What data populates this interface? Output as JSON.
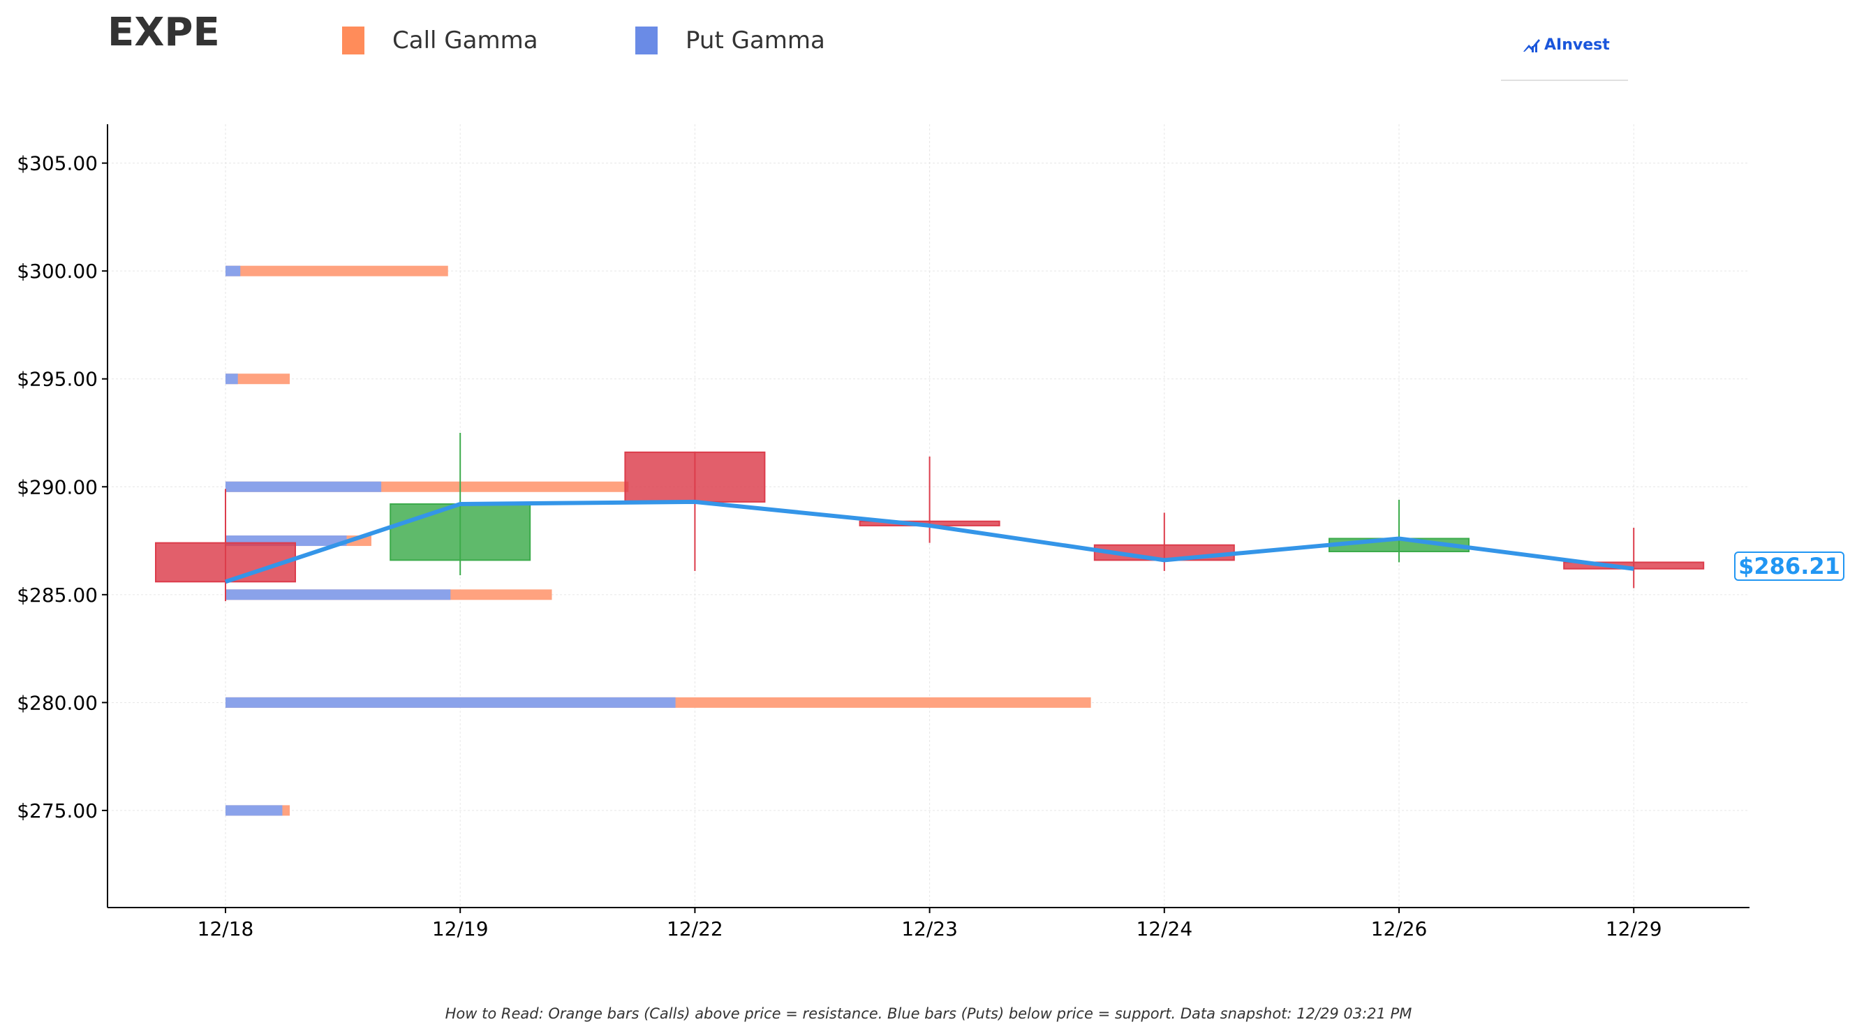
{
  "header": {
    "ticker": "EXPE",
    "legend": [
      {
        "label": "Call Gamma",
        "color": "#ff8c5a",
        "icon": "call-gamma-swatch"
      },
      {
        "label": "Put Gamma",
        "color": "#6a8be6",
        "icon": "put-gamma-swatch"
      }
    ],
    "logo_text": "AInvest"
  },
  "footer": {
    "text": "How to Read: Orange bars (Calls) above price = resistance. Blue bars (Puts) below price = support. Data snapshot: 12/29 03:21 PM"
  },
  "price_tag": "$286.21",
  "chart_data": {
    "type": "candlestick",
    "categories": [
      "12/18",
      "12/19",
      "12/22",
      "12/23",
      "12/24",
      "12/26",
      "12/29"
    ],
    "ylim": [
      270.5,
      306.8
    ],
    "yticks": [
      275,
      280,
      285,
      290,
      295,
      300,
      305
    ],
    "ytick_labels": [
      "$275.00",
      "$280.00",
      "$285.00",
      "$290.00",
      "$295.00",
      "$300.00",
      "$305.00"
    ],
    "grid": true,
    "colors": {
      "up": "#3cab4b",
      "down": "#dc3c4b",
      "line": "#3495e8",
      "call": "#ffa27f",
      "put": "#8aa2ea"
    },
    "candles": [
      {
        "date": "12/18",
        "open": 287.4,
        "high": 289.9,
        "low": 284.7,
        "close": 285.6
      },
      {
        "date": "12/19",
        "open": 286.6,
        "high": 292.5,
        "low": 285.9,
        "close": 289.2
      },
      {
        "date": "12/22",
        "open": 291.6,
        "high": 291.6,
        "low": 286.1,
        "close": 289.3
      },
      {
        "date": "12/23",
        "open": 288.4,
        "high": 291.4,
        "low": 287.4,
        "close": 288.2
      },
      {
        "date": "12/24",
        "open": 287.3,
        "high": 288.8,
        "low": 286.1,
        "close": 286.6
      },
      {
        "date": "12/26",
        "open": 287.0,
        "high": 289.4,
        "low": 286.5,
        "close": 287.6
      },
      {
        "date": "12/29",
        "open": 286.5,
        "high": 288.1,
        "low": 285.3,
        "close": 286.2
      }
    ],
    "close_line": [
      285.6,
      289.2,
      289.3,
      288.2,
      286.6,
      287.6,
      286.2
    ],
    "gamma_strikes": [
      {
        "strike": 300.0,
        "put": 0.06,
        "total": 0.9
      },
      {
        "strike": 295.0,
        "put": 0.05,
        "total": 0.26
      },
      {
        "strike": 290.0,
        "put": 0.63,
        "total": 1.63
      },
      {
        "strike": 287.5,
        "put": 0.49,
        "total": 0.59
      },
      {
        "strike": 285.0,
        "put": 0.91,
        "total": 1.32
      },
      {
        "strike": 280.0,
        "put": 1.82,
        "total": 3.5
      },
      {
        "strike": 275.0,
        "put": 0.23,
        "total": 0.26
      }
    ]
  }
}
